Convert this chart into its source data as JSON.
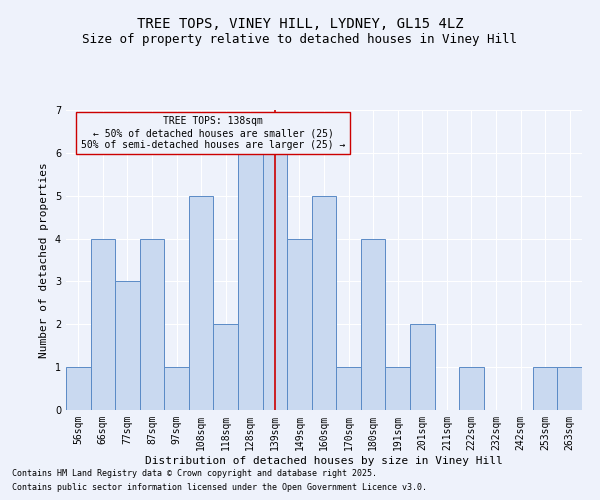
{
  "title": "TREE TOPS, VINEY HILL, LYDNEY, GL15 4LZ",
  "subtitle": "Size of property relative to detached houses in Viney Hill",
  "xlabel": "Distribution of detached houses by size in Viney Hill",
  "ylabel": "Number of detached properties",
  "categories": [
    "56sqm",
    "66sqm",
    "77sqm",
    "87sqm",
    "97sqm",
    "108sqm",
    "118sqm",
    "128sqm",
    "139sqm",
    "149sqm",
    "160sqm",
    "170sqm",
    "180sqm",
    "191sqm",
    "201sqm",
    "211sqm",
    "222sqm",
    "232sqm",
    "242sqm",
    "253sqm",
    "263sqm"
  ],
  "values": [
    1,
    4,
    3,
    4,
    1,
    5,
    2,
    6,
    6,
    4,
    5,
    1,
    4,
    1,
    2,
    0,
    1,
    0,
    0,
    1,
    1
  ],
  "bar_color": "#c9d9f0",
  "bar_edge_color": "#5a8ac6",
  "highlight_index": 8,
  "highlight_line_color": "#cc0000",
  "ylim": [
    0,
    7
  ],
  "yticks": [
    0,
    1,
    2,
    3,
    4,
    5,
    6,
    7
  ],
  "annotation_text": "TREE TOPS: 138sqm\n← 50% of detached houses are smaller (25)\n50% of semi-detached houses are larger (25) →",
  "annotation_box_edge": "#cc0000",
  "footnote1": "Contains HM Land Registry data © Crown copyright and database right 2025.",
  "footnote2": "Contains public sector information licensed under the Open Government Licence v3.0.",
  "bg_color": "#eef2fb",
  "title_fontsize": 10,
  "subtitle_fontsize": 9,
  "axis_label_fontsize": 8,
  "tick_fontsize": 7,
  "annotation_fontsize": 7,
  "footnote_fontsize": 6
}
